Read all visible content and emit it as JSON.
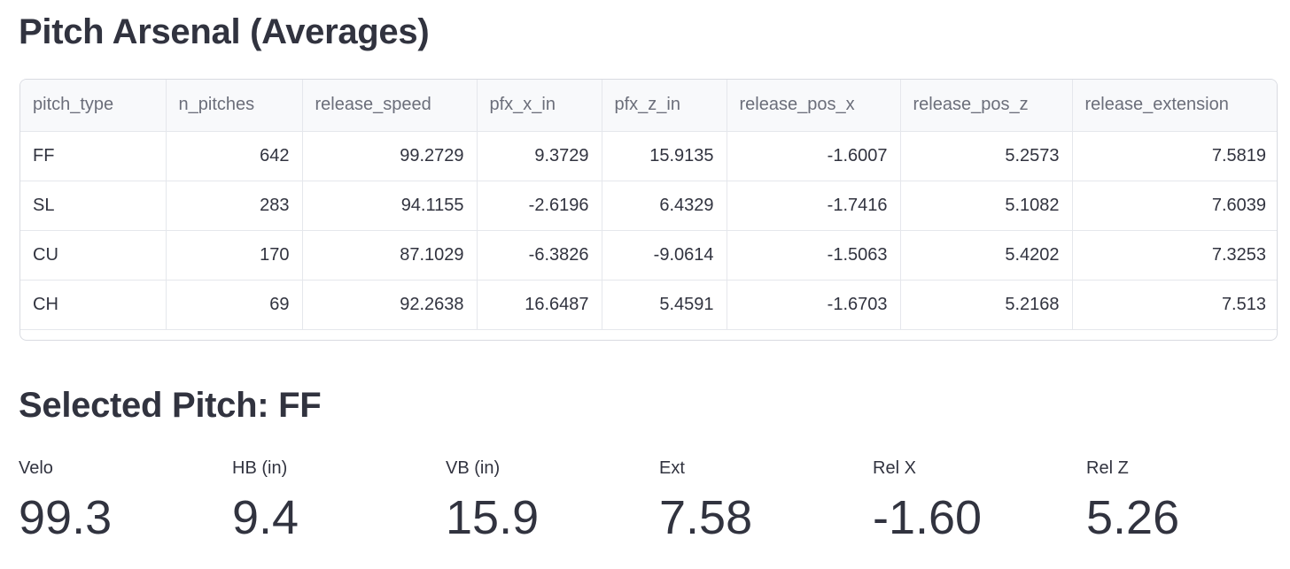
{
  "headings": {
    "arsenal": "Pitch Arsenal (Averages)",
    "selected": "Selected Pitch: FF"
  },
  "table": {
    "columns": [
      "pitch_type",
      "n_pitches",
      "release_speed",
      "pfx_x_in",
      "pfx_z_in",
      "release_pos_x",
      "release_pos_z",
      "release_extension"
    ],
    "rows": [
      [
        "FF",
        "642",
        "99.2729",
        "9.3729",
        "15.9135",
        "-1.6007",
        "5.2573",
        "7.5819"
      ],
      [
        "SL",
        "283",
        "94.1155",
        "-2.6196",
        "6.4329",
        "-1.7416",
        "5.1082",
        "7.6039"
      ],
      [
        "CU",
        "170",
        "87.1029",
        "-6.3826",
        "-9.0614",
        "-1.5063",
        "5.4202",
        "7.3253"
      ],
      [
        "CH",
        "69",
        "92.2638",
        "16.6487",
        "5.4591",
        "-1.6703",
        "5.2168",
        "7.513"
      ]
    ]
  },
  "metrics": [
    {
      "label": "Velo",
      "value": "99.3"
    },
    {
      "label": "HB (in)",
      "value": "9.4"
    },
    {
      "label": "VB (in)",
      "value": "15.9"
    },
    {
      "label": "Ext",
      "value": "7.58"
    },
    {
      "label": "Rel X",
      "value": "-1.60"
    },
    {
      "label": "Rel Z",
      "value": "5.26"
    }
  ]
}
